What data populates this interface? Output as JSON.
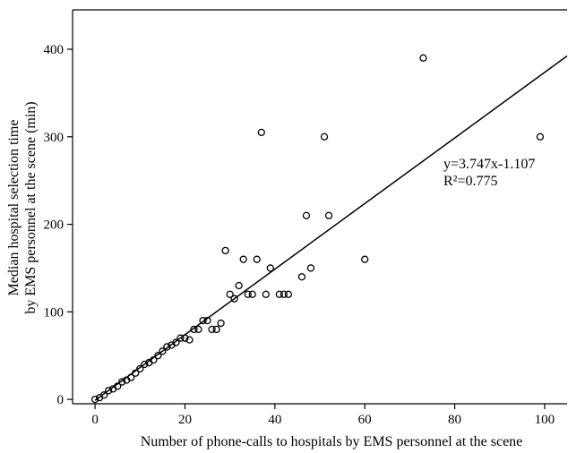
{
  "chart_data": {
    "type": "scatter",
    "xlabel": "Number of phone-calls to hospitals by EMS personnel at the scene",
    "ylabel_lines": [
      "Median hospital selection time",
      "by EMS personnel at the scene  (min)"
    ],
    "xlim": [
      -5,
      105
    ],
    "ylim": [
      -5,
      445
    ],
    "x_ticks": [
      0,
      20,
      40,
      60,
      80,
      100
    ],
    "y_ticks": [
      0,
      100,
      200,
      300,
      400
    ],
    "x_tick_labels": [
      "0",
      "20",
      "40",
      "60",
      "80",
      "100"
    ],
    "y_tick_labels": [
      "0",
      "100",
      "200",
      "300",
      "400"
    ],
    "grid": false,
    "fit": {
      "slope": 3.747,
      "intercept": -1.107,
      "equation_label": "y=3.747x-1.107",
      "r2_label": "R²=0.775"
    },
    "points": [
      [
        0,
        0
      ],
      [
        1,
        2
      ],
      [
        2,
        5
      ],
      [
        3,
        10
      ],
      [
        4,
        12
      ],
      [
        5,
        15
      ],
      [
        6,
        20
      ],
      [
        7,
        22
      ],
      [
        8,
        25
      ],
      [
        9,
        30
      ],
      [
        10,
        35
      ],
      [
        11,
        40
      ],
      [
        12,
        42
      ],
      [
        13,
        45
      ],
      [
        14,
        50
      ],
      [
        15,
        55
      ],
      [
        16,
        60
      ],
      [
        17,
        62
      ],
      [
        18,
        65
      ],
      [
        19,
        70
      ],
      [
        20,
        70
      ],
      [
        21,
        68
      ],
      [
        22,
        80
      ],
      [
        23,
        80
      ],
      [
        24,
        90
      ],
      [
        25,
        90
      ],
      [
        26,
        80
      ],
      [
        27,
        80
      ],
      [
        28,
        87
      ],
      [
        29,
        170
      ],
      [
        30,
        120
      ],
      [
        31,
        115
      ],
      [
        32,
        130
      ],
      [
        33,
        160
      ],
      [
        34,
        120
      ],
      [
        35,
        120
      ],
      [
        36,
        160
      ],
      [
        37,
        305
      ],
      [
        38,
        120
      ],
      [
        39,
        150
      ],
      [
        41,
        120
      ],
      [
        42,
        120
      ],
      [
        43,
        120
      ],
      [
        46,
        140
      ],
      [
        47,
        210
      ],
      [
        48,
        150
      ],
      [
        51,
        300
      ],
      [
        52,
        210
      ],
      [
        60,
        160
      ],
      [
        73,
        390
      ],
      [
        99,
        300
      ]
    ]
  }
}
